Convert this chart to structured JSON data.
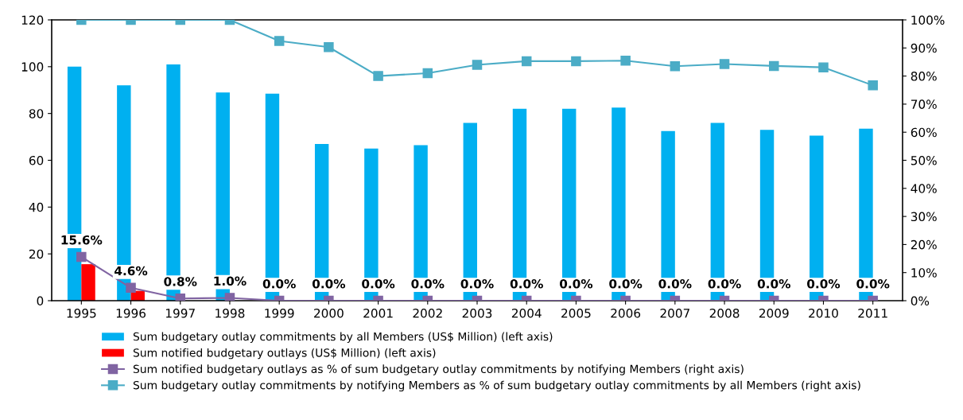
{
  "chart_data": {
    "type": "bar",
    "categories": [
      "1995",
      "1996",
      "1997",
      "1998",
      "1999",
      "2000",
      "2001",
      "2002",
      "2003",
      "2004",
      "2005",
      "2006",
      "2007",
      "2008",
      "2009",
      "2010",
      "2011"
    ],
    "series": [
      {
        "name": "Sum budgetary outlay commitments by all Members (US$ Million) (left axis)",
        "color": "#00b0f0",
        "values": [
          100,
          92,
          101,
          89,
          88.5,
          67,
          65,
          66.5,
          76,
          82,
          82,
          82.5,
          72.5,
          76,
          73,
          70.5,
          73.5
        ]
      },
      {
        "name": "Sum notified budgetary outlays (US$ Million) (left axis)",
        "color": "#ff0000",
        "values": [
          15.6,
          4.2,
          null,
          null,
          0,
          0,
          0,
          0,
          0,
          0,
          0,
          0,
          0,
          0,
          0,
          0,
          0
        ]
      },
      {
        "name": "Sum notified budgetary outlays as % of sum budgetary outlay commitments by notifying Members (right axis)",
        "color": "#8064a2",
        "type": "line",
        "axis": "y2",
        "data_labels": true,
        "value_labels": [
          "15.6%",
          "4.6%",
          "0.8%",
          "1.0%",
          "0.0%",
          "0.0%",
          "0.0%",
          "0.0%",
          "0.0%",
          "0.0%",
          "0.0%",
          "0.0%",
          "0.0%",
          "0.0%",
          "0.0%",
          "0.0%",
          "0.0%"
        ],
        "values": [
          15.6,
          4.6,
          0.8,
          1.0,
          0,
          0,
          0,
          0,
          0,
          0,
          0,
          0,
          0,
          0,
          0,
          0,
          0
        ]
      },
      {
        "name": "Sum budgetary outlay commitments by notifying Members as % of sum budgetary outlay commitments by all Members (right axis)",
        "color": "#4bacc6",
        "type": "line",
        "axis": "y2",
        "values": [
          100,
          100,
          100,
          100,
          92.5,
          90.3,
          80,
          81,
          84,
          85.3,
          85.3,
          85.5,
          83.5,
          84.3,
          83.6,
          83.1,
          76.7
        ]
      }
    ],
    "ylim": [
      0,
      120
    ],
    "yticks": [
      0,
      20,
      40,
      60,
      80,
      100,
      120
    ],
    "y2lim": [
      0,
      100
    ],
    "y2ticks": [
      {
        "value": 0,
        "label": "0%"
      },
      {
        "value": 10,
        "label": "10%"
      },
      {
        "value": 20,
        "label": "20%"
      },
      {
        "value": 30,
        "label": "30%"
      },
      {
        "value": 40,
        "label": "40%"
      },
      {
        "value": 50,
        "label": "50%"
      },
      {
        "value": 60,
        "label": "60%"
      },
      {
        "value": 70,
        "label": "70%"
      },
      {
        "value": 80,
        "label": "80%"
      },
      {
        "value": 90,
        "label": "90%"
      },
      {
        "value": 100,
        "label": "100%"
      }
    ],
    "grid": false,
    "legend": "bottom",
    "marker": "square",
    "line_style": "solid"
  }
}
